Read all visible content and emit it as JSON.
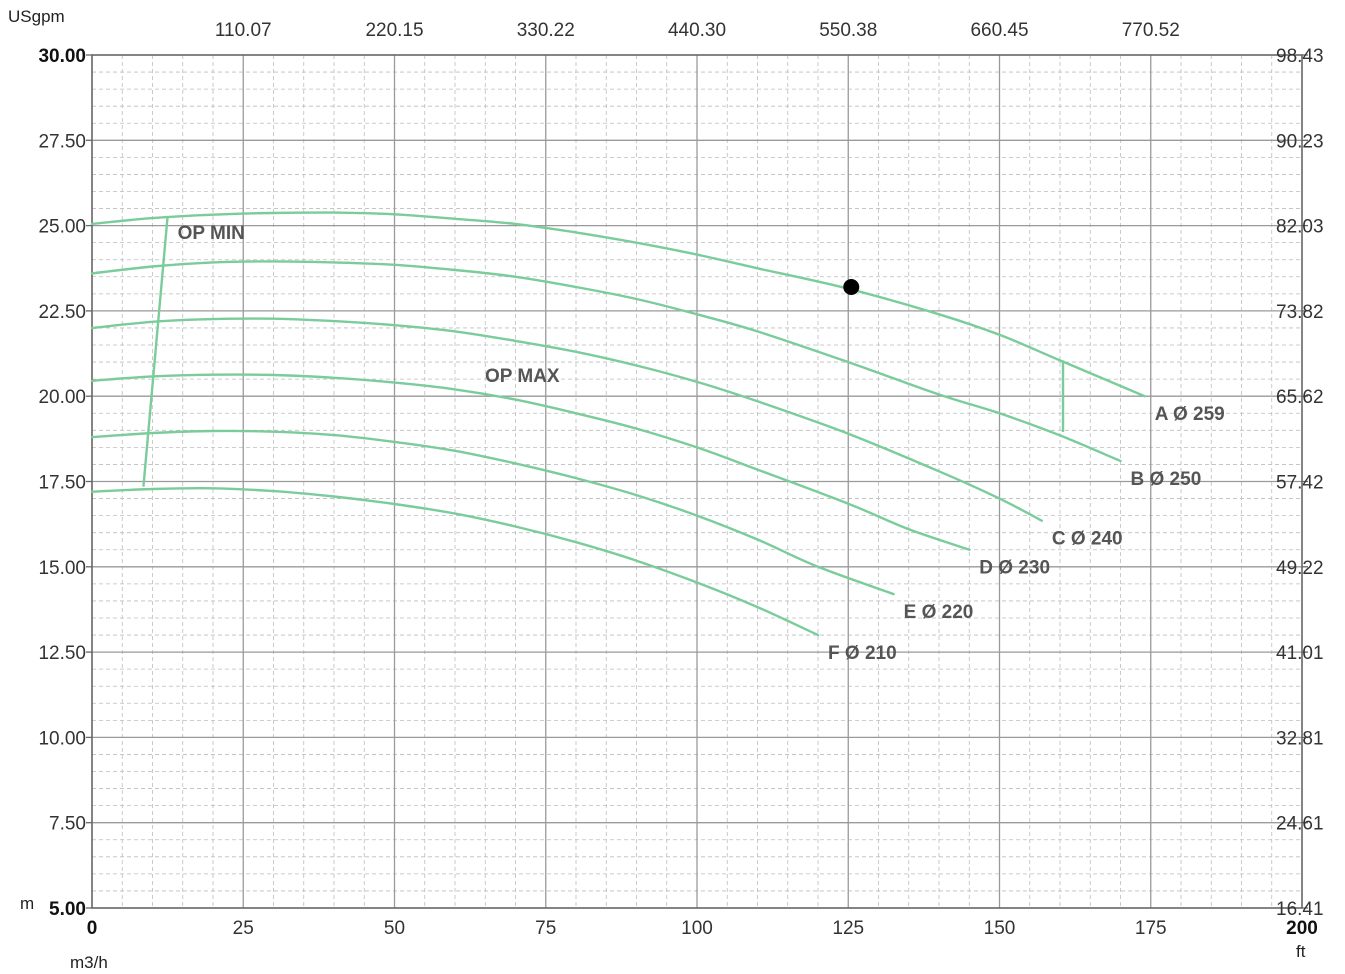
{
  "chart_data": {
    "type": "line",
    "title": "",
    "x_unit": "m3/h",
    "y_unit": "m",
    "top_axis_unit": "USgpm",
    "right_axis_unit": "ft",
    "xlim": [
      0,
      200
    ],
    "ylim": [
      5,
      30
    ],
    "x_ticks": [
      "0",
      "25",
      "50",
      "75",
      "100",
      "125",
      "150",
      "175",
      "200"
    ],
    "y_ticks": [
      "5.00",
      "7.50",
      "10.00",
      "12.50",
      "15.00",
      "17.50",
      "20.00",
      "22.50",
      "25.00",
      "27.50",
      "30.00"
    ],
    "top_ticks": [
      "110.07",
      "220.15",
      "330.22",
      "440.30",
      "550.38",
      "660.45",
      "770.52"
    ],
    "right_ticks": [
      "16.41",
      "24.61",
      "32.81",
      "41.01",
      "49.22",
      "57.42",
      "65.62",
      "73.82",
      "82.03",
      "90.23",
      "98.43"
    ],
    "grid": true,
    "curve_color": "#7acc9a",
    "series": [
      {
        "name": "A Ø 259",
        "x": [
          0,
          10,
          20,
          30,
          40,
          50,
          60,
          70,
          80,
          90,
          100,
          110,
          125,
          140,
          150,
          160,
          174
        ],
        "y": [
          25.05,
          25.22,
          25.32,
          25.37,
          25.38,
          25.33,
          25.2,
          25.05,
          24.8,
          24.5,
          24.15,
          23.75,
          23.15,
          22.4,
          21.8,
          21.05,
          20.0
        ]
      },
      {
        "name": "B Ø 250",
        "x": [
          0,
          10,
          20,
          30,
          40,
          50,
          60,
          70,
          80,
          90,
          100,
          110,
          125,
          140,
          150,
          160,
          170
        ],
        "y": [
          23.6,
          23.8,
          23.92,
          23.95,
          23.92,
          23.85,
          23.7,
          23.5,
          23.2,
          22.85,
          22.4,
          21.9,
          21.0,
          20.05,
          19.5,
          18.85,
          18.1
        ]
      },
      {
        "name": "C Ø 240",
        "x": [
          0,
          10,
          20,
          30,
          40,
          50,
          60,
          70,
          80,
          90,
          100,
          110,
          125,
          140,
          150,
          157
        ],
        "y": [
          22.0,
          22.18,
          22.26,
          22.27,
          22.2,
          22.08,
          21.9,
          21.62,
          21.3,
          20.9,
          20.42,
          19.85,
          18.9,
          17.8,
          17.0,
          16.35
        ]
      },
      {
        "name": "D Ø 230",
        "x": [
          0,
          10,
          20,
          30,
          40,
          50,
          60,
          70,
          80,
          90,
          100,
          110,
          125,
          135,
          145
        ],
        "y": [
          20.45,
          20.58,
          20.63,
          20.62,
          20.54,
          20.4,
          20.2,
          19.9,
          19.5,
          19.05,
          18.5,
          17.85,
          16.85,
          16.1,
          15.5
        ]
      },
      {
        "name": "E Ø 220",
        "x": [
          0,
          10,
          20,
          30,
          40,
          50,
          60,
          70,
          80,
          90,
          100,
          110,
          120,
          132.5
        ],
        "y": [
          18.8,
          18.92,
          18.98,
          18.96,
          18.86,
          18.66,
          18.4,
          18.03,
          17.6,
          17.1,
          16.5,
          15.8,
          15.0,
          14.2
        ]
      },
      {
        "name": "F Ø 210",
        "x": [
          0,
          10,
          20,
          30,
          40,
          50,
          60,
          70,
          80,
          90,
          100,
          110,
          120
        ],
        "y": [
          17.2,
          17.28,
          17.3,
          17.22,
          17.06,
          16.84,
          16.56,
          16.18,
          15.72,
          15.18,
          14.54,
          13.82,
          13.0
        ]
      }
    ],
    "op_min": {
      "label": "OP MIN",
      "x": [
        12.5,
        8.5
      ],
      "y": [
        25.28,
        17.35
      ]
    },
    "op_max": {
      "label": "OP MAX",
      "x": [
        160.5,
        160.5
      ],
      "y": [
        21.05,
        18.95
      ]
    },
    "operating_point": {
      "x": 125.5,
      "y": 23.2
    }
  }
}
